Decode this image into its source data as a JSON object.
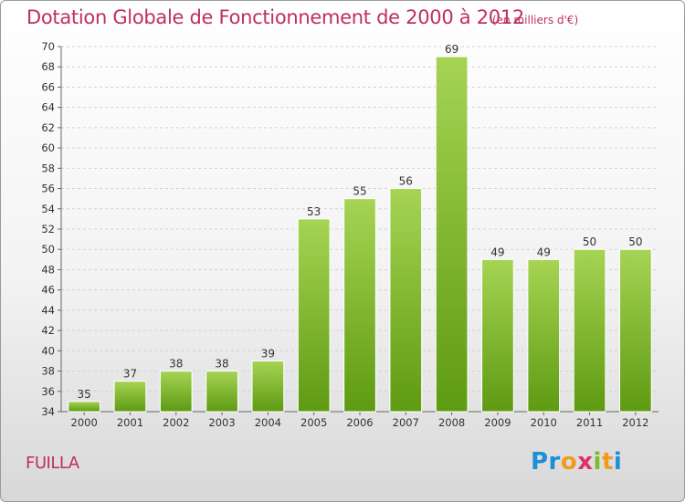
{
  "chart_data": {
    "type": "bar",
    "title": "Dotation Globale de Fonctionnement de 2000 à 2012",
    "subtitle": "(en milliers d'€)",
    "categories": [
      "2000",
      "2001",
      "2002",
      "2003",
      "2004",
      "2005",
      "2006",
      "2007",
      "2008",
      "2009",
      "2010",
      "2011",
      "2012"
    ],
    "values": [
      35,
      37,
      38,
      38,
      39,
      53,
      55,
      56,
      69,
      49,
      49,
      50,
      50
    ],
    "ylim": [
      34,
      70
    ],
    "yticks": [
      34,
      36,
      38,
      40,
      42,
      44,
      46,
      48,
      50,
      52,
      54,
      56,
      58,
      60,
      62,
      64,
      66,
      68,
      70
    ],
    "xlabel": "",
    "ylabel": "",
    "grid": true,
    "bar_color_top": "#a6d454",
    "bar_color_bottom": "#5e9a12"
  },
  "place_name": "FUILLA",
  "logo": {
    "parts": [
      {
        "text": "Pr",
        "color": "#1c8fd8"
      },
      {
        "text": "o",
        "color": "#f29a1e"
      },
      {
        "text": "x",
        "color": "#e0306a"
      },
      {
        "text": "i",
        "color": "#7cbc2a"
      },
      {
        "text": "t",
        "color": "#f29a1e"
      },
      {
        "text": "i",
        "color": "#1c8fd8"
      }
    ]
  }
}
